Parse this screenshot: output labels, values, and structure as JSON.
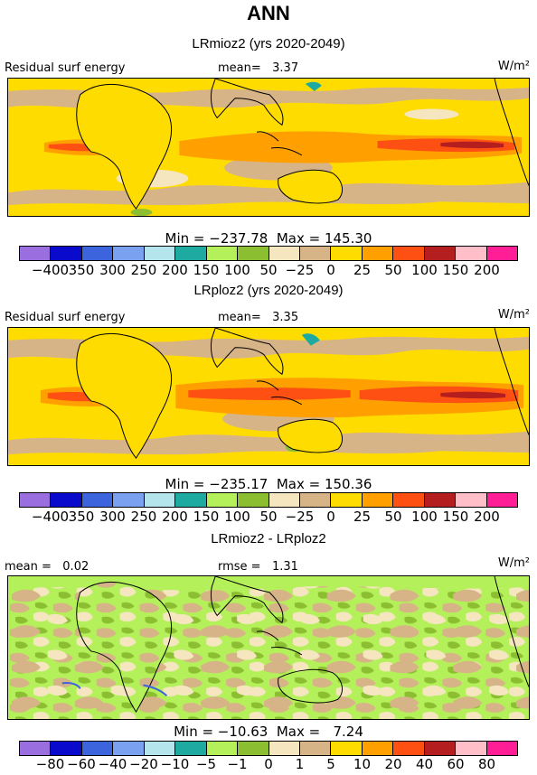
{
  "title": "ANN",
  "panels": [
    {
      "title": "LRmioz2 (yrs 2020-2049)",
      "left_label": "Residual surf energy",
      "center_label": "mean=   3.37",
      "units": "W/m²",
      "minmax": "Min = −237.78  Max = 145.30",
      "colorbar_labels": [
        "−400",
        "350",
        "300",
        "250",
        "200",
        "150",
        "100",
        "50",
        "−25",
        "0",
        "25",
        "50",
        "100",
        "150",
        "200"
      ]
    },
    {
      "title": "LRploz2 (yrs 2020-2049)",
      "left_label": "Residual surf energy",
      "center_label": "mean=   3.35",
      "units": "W/m²",
      "minmax": "Min = −235.17  Max = 150.36",
      "colorbar_labels": [
        "−400",
        "350",
        "300",
        "250",
        "200",
        "150",
        "100",
        "50",
        "−25",
        "0",
        "25",
        "50",
        "100",
        "150",
        "200"
      ]
    },
    {
      "title": "LRmioz2 - LRploz2",
      "left_label": "mean =   0.02",
      "center_label": "rmse =   1.31",
      "units": "W/m²",
      "minmax": "Min = −10.63  Max =   7.24",
      "colorbar_labels": [
        "−80",
        "−60",
        "−40",
        "−20",
        "−10",
        "−5",
        "−1",
        "0",
        "1",
        "5",
        "10",
        "20",
        "40",
        "60",
        "80"
      ]
    }
  ],
  "colors": [
    "#9b6ee0",
    "#0a0acc",
    "#3c64dc",
    "#7aa0f0",
    "#b4e4ec",
    "#1eaaa0",
    "#b4f05a",
    "#8cbe32",
    "#f5e6c0",
    "#d7b487",
    "#ffdc00",
    "#ffa000",
    "#ff5014",
    "#b41e1e",
    "#ffbec8",
    "#ff1e96"
  ]
}
